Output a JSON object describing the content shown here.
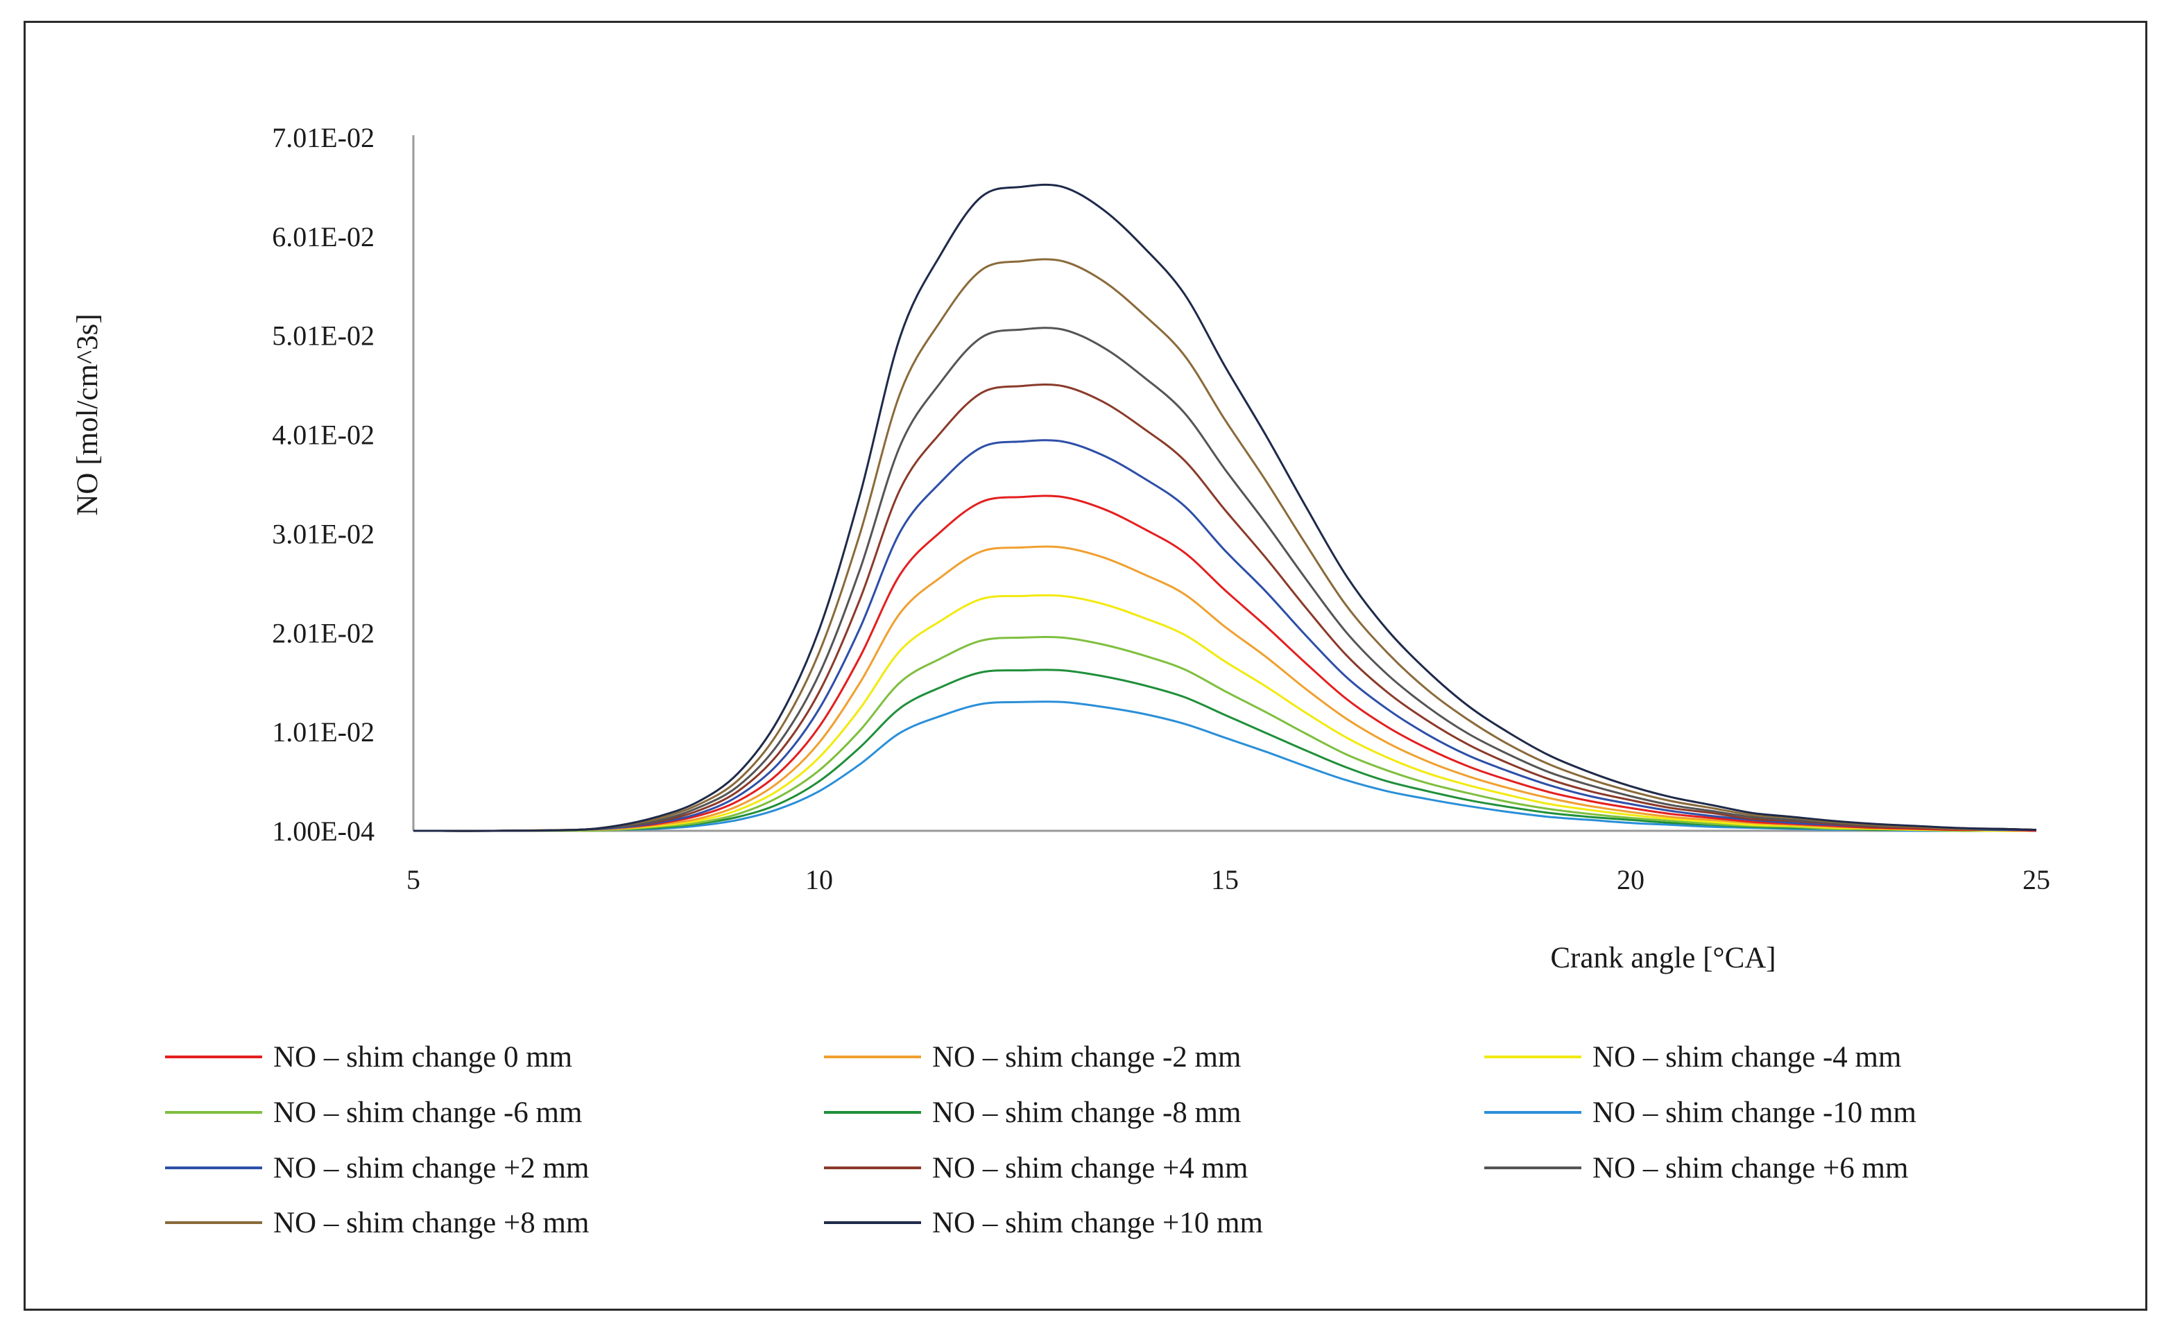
{
  "chart_data": {
    "type": "line",
    "title": "",
    "xlabel": "Crank angle  [°CA]",
    "ylabel": "NO  [mol/cm^3s]",
    "xlim": [
      5,
      25
    ],
    "ylim": [
      0.0001,
      0.0701
    ],
    "x_ticks": [
      5,
      10,
      15,
      20,
      25
    ],
    "x_tick_labels": [
      "5",
      "10",
      "15",
      "20",
      "25"
    ],
    "y_ticks": [
      0.0001,
      0.0101,
      0.0201,
      0.0301,
      0.0401,
      0.0501,
      0.0601,
      0.0701
    ],
    "y_tick_labels": [
      "1.00E-04",
      "1.01E-02",
      "2.01E-02",
      "3.01E-02",
      "4.01E-02",
      "5.01E-02",
      "6.01E-02",
      "7.01E-02"
    ],
    "grid": false,
    "legend_position": "bottom",
    "x": [
      5,
      6,
      7,
      7.5,
      8,
      8.5,
      9,
      9.5,
      10,
      10.5,
      11,
      11.5,
      12,
      12.5,
      13,
      13.5,
      14,
      14.5,
      15,
      15.5,
      16,
      16.5,
      17,
      17.5,
      18,
      18.5,
      19,
      19.5,
      20,
      20.5,
      21,
      21.5,
      22,
      22.5,
      23,
      23.5,
      24,
      24.5,
      25
    ],
    "series": [
      {
        "name": "NO – shim change  0 mm",
        "color": "#e41f1f",
        "values": [
          0.0001,
          0.0001,
          0.0002,
          0.0004,
          0.0008,
          0.0016,
          0.0031,
          0.0059,
          0.0106,
          0.0176,
          0.026,
          0.0303,
          0.0333,
          0.0338,
          0.0338,
          0.0326,
          0.0306,
          0.0282,
          0.0244,
          0.0208,
          0.017,
          0.0134,
          0.0106,
          0.0084,
          0.0066,
          0.0052,
          0.004,
          0.0031,
          0.0024,
          0.0018,
          0.0014,
          0.001,
          0.0008,
          0.0006,
          0.0004,
          0.0003,
          0.0002,
          0.0002,
          0.0001
        ]
      },
      {
        "name": "NO – shim change -2 mm",
        "color": "#f0a030",
        "values": [
          0.0001,
          0.0001,
          0.0002,
          0.0003,
          0.0007,
          0.0013,
          0.0026,
          0.005,
          0.009,
          0.015,
          0.0221,
          0.0257,
          0.0283,
          0.0287,
          0.0287,
          0.0277,
          0.026,
          0.024,
          0.0207,
          0.0177,
          0.0144,
          0.0114,
          0.009,
          0.0071,
          0.0056,
          0.0044,
          0.0034,
          0.0026,
          0.002,
          0.0015,
          0.0012,
          0.0009,
          0.0007,
          0.0005,
          0.0004,
          0.0003,
          0.0002,
          0.0002,
          0.0001
        ]
      },
      {
        "name": "NO – shim change -4 mm",
        "color": "#f2ea10",
        "values": [
          0.0001,
          0.0001,
          0.0002,
          0.0003,
          0.0006,
          0.0011,
          0.0022,
          0.0042,
          0.0075,
          0.0124,
          0.0183,
          0.0213,
          0.0235,
          0.0238,
          0.0238,
          0.023,
          0.0216,
          0.0199,
          0.0172,
          0.0147,
          0.012,
          0.0095,
          0.0075,
          0.0059,
          0.0047,
          0.0037,
          0.0028,
          0.0022,
          0.0017,
          0.0013,
          0.001,
          0.0007,
          0.0006,
          0.0004,
          0.0003,
          0.0002,
          0.0002,
          0.0001,
          0.0001
        ]
      },
      {
        "name": "NO – shim change -6 mm",
        "color": "#7fbf3f",
        "values": [
          0.0001,
          0.0001,
          0.0001,
          0.0002,
          0.0005,
          0.0009,
          0.0018,
          0.0035,
          0.0062,
          0.0102,
          0.0151,
          0.0175,
          0.0193,
          0.0196,
          0.0196,
          0.0189,
          0.0178,
          0.0164,
          0.0142,
          0.0121,
          0.0099,
          0.0078,
          0.0062,
          0.0049,
          0.0039,
          0.003,
          0.0023,
          0.0018,
          0.0014,
          0.0011,
          0.0008,
          0.0006,
          0.0005,
          0.0003,
          0.0003,
          0.0002,
          0.0001,
          0.0001,
          0.0001
        ]
      },
      {
        "name": "NO – shim change -8 mm",
        "color": "#1f8f3a",
        "values": [
          0.0001,
          0.0001,
          0.0001,
          0.0002,
          0.0004,
          0.0008,
          0.0015,
          0.0028,
          0.0051,
          0.0085,
          0.0125,
          0.0146,
          0.0161,
          0.0163,
          0.0163,
          0.0157,
          0.0148,
          0.0136,
          0.0118,
          0.01,
          0.0082,
          0.0065,
          0.0051,
          0.0041,
          0.0032,
          0.0025,
          0.0019,
          0.0015,
          0.0012,
          0.0009,
          0.0007,
          0.0005,
          0.0004,
          0.0003,
          0.0002,
          0.0002,
          0.0001,
          0.0001,
          0.0001
        ]
      },
      {
        "name": "NO – shim change -10 mm",
        "color": "#2a8fd8",
        "values": [
          0.0001,
          0.0001,
          0.0001,
          0.0002,
          0.0003,
          0.0006,
          0.0012,
          0.0023,
          0.0041,
          0.0068,
          0.01,
          0.0117,
          0.0129,
          0.0131,
          0.0131,
          0.0126,
          0.0119,
          0.0109,
          0.0095,
          0.0081,
          0.0066,
          0.0052,
          0.0041,
          0.0033,
          0.0026,
          0.002,
          0.0015,
          0.0012,
          0.0009,
          0.0007,
          0.0005,
          0.0004,
          0.0003,
          0.0002,
          0.0002,
          0.0001,
          0.0001,
          0.0001,
          0.0001
        ]
      },
      {
        "name": "NO – shim change +2 mm",
        "color": "#2e4fa8",
        "values": [
          0.0001,
          0.0001,
          0.0002,
          0.0004,
          0.0009,
          0.0018,
          0.0036,
          0.0069,
          0.0124,
          0.0205,
          0.0303,
          0.0353,
          0.0388,
          0.0394,
          0.0394,
          0.038,
          0.0357,
          0.0329,
          0.0284,
          0.0243,
          0.0198,
          0.0156,
          0.0124,
          0.0098,
          0.0077,
          0.0061,
          0.0047,
          0.0036,
          0.0028,
          0.0021,
          0.0016,
          0.0012,
          0.0009,
          0.0007,
          0.0005,
          0.0004,
          0.0003,
          0.0002,
          0.0002
        ]
      },
      {
        "name": "NO – shim change +4 mm",
        "color": "#8b3a2a",
        "values": [
          0.0001,
          0.0001,
          0.0002,
          0.0005,
          0.001,
          0.0021,
          0.0041,
          0.0079,
          0.0141,
          0.0234,
          0.0346,
          0.0403,
          0.0443,
          0.045,
          0.045,
          0.0434,
          0.0407,
          0.0375,
          0.0325,
          0.0277,
          0.0226,
          0.0178,
          0.0141,
          0.0112,
          0.0088,
          0.0069,
          0.0053,
          0.0041,
          0.0032,
          0.0024,
          0.0019,
          0.0013,
          0.0011,
          0.0008,
          0.0005,
          0.0004,
          0.0003,
          0.0003,
          0.0002
        ]
      },
      {
        "name": "NO – shim change +6 mm",
        "color": "#555555",
        "values": [
          0.0001,
          0.0001,
          0.0002,
          0.0005,
          0.0011,
          0.0024,
          0.0046,
          0.0089,
          0.0159,
          0.0264,
          0.039,
          0.0454,
          0.0499,
          0.0507,
          0.0507,
          0.0489,
          0.0459,
          0.0423,
          0.0366,
          0.0312,
          0.0255,
          0.0201,
          0.0159,
          0.0126,
          0.0099,
          0.0078,
          0.006,
          0.0047,
          0.0036,
          0.0027,
          0.0021,
          0.0015,
          0.0012,
          0.0009,
          0.0006,
          0.0005,
          0.0003,
          0.0003,
          0.0002
        ]
      },
      {
        "name": "NO – shim change +8 mm",
        "color": "#8a6a3a",
        "values": [
          0.0001,
          0.0001,
          0.0002,
          0.0006,
          0.0013,
          0.0027,
          0.0052,
          0.0101,
          0.0181,
          0.03,
          0.0443,
          0.0516,
          0.0567,
          0.0576,
          0.0576,
          0.0556,
          0.0522,
          0.0481,
          0.0416,
          0.0355,
          0.029,
          0.0228,
          0.0181,
          0.0143,
          0.0113,
          0.0088,
          0.0068,
          0.0053,
          0.0041,
          0.0031,
          0.0024,
          0.0017,
          0.0014,
          0.001,
          0.0007,
          0.0005,
          0.0003,
          0.0003,
          0.0002
        ]
      },
      {
        "name": "NO – shim change +10 mm",
        "color": "#1f2a4a",
        "values": [
          0.0001,
          0.0001,
          0.0002,
          0.0006,
          0.0015,
          0.003,
          0.0059,
          0.0114,
          0.0204,
          0.0339,
          0.05,
          0.0583,
          0.0641,
          0.0651,
          0.0651,
          0.0628,
          0.059,
          0.0543,
          0.047,
          0.0401,
          0.0328,
          0.0258,
          0.0204,
          0.0162,
          0.0127,
          0.01,
          0.0077,
          0.006,
          0.0046,
          0.0035,
          0.0027,
          0.0019,
          0.0015,
          0.0011,
          0.0008,
          0.0006,
          0.0004,
          0.0003,
          0.0002
        ]
      }
    ]
  }
}
